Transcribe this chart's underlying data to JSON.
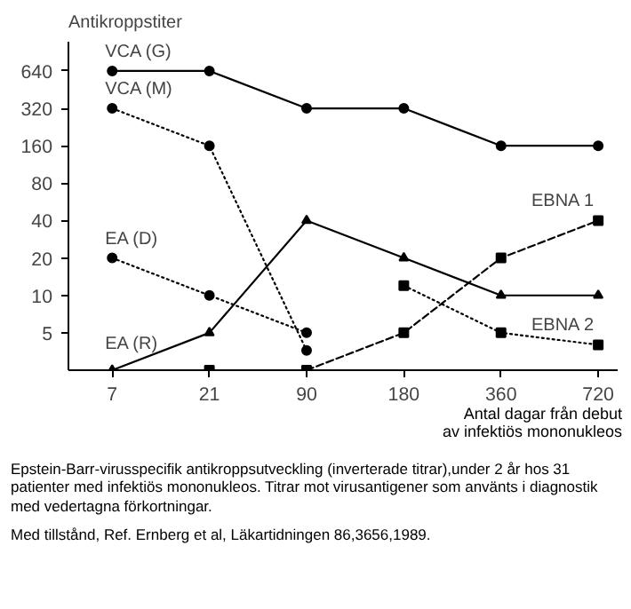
{
  "chart_data": {
    "type": "line",
    "ylabel": "Antikroppstiter",
    "xlabel": "Antal dagar från debut\nav infektiös mononukleos",
    "categories": [
      "7",
      "21",
      "90",
      "180",
      "360",
      "720"
    ],
    "log": "y",
    "ylim": [
      2.5,
      1100
    ],
    "yticks": [
      5,
      10,
      20,
      40,
      80,
      160,
      320,
      640
    ],
    "grid": false,
    "series": [
      {
        "name": "VCA (G)",
        "color": "#000000",
        "marker": "circle",
        "line_style": "solid",
        "values": [
          640,
          640,
          320,
          320,
          160,
          160
        ]
      },
      {
        "name": "VCA (M)",
        "color": "#000000",
        "marker": "circle",
        "line_style": "dotted",
        "values": [
          320,
          160,
          3.6,
          null,
          null,
          null
        ]
      },
      {
        "name": "EA (D)",
        "color": "#000000",
        "marker": "circle",
        "line_style": "dotted",
        "values": [
          20,
          10,
          5,
          null,
          null,
          null
        ]
      },
      {
        "name": "EA (R)",
        "color": "#000000",
        "marker": "triangle",
        "line_style": "solid",
        "values": [
          2.5,
          5,
          40,
          20,
          10,
          10
        ]
      },
      {
        "name": "EBNA 1",
        "color": "#000000",
        "marker": "square",
        "line_style": "dashed",
        "values": [
          null,
          null,
          2.5,
          5,
          20,
          40
        ]
      },
      {
        "name": "EBNA 2",
        "color": "#000000",
        "marker": "square",
        "line_style": "dotted",
        "values": [
          null,
          2.5,
          null,
          12,
          5,
          4
        ]
      }
    ],
    "annotations": [
      "Epstein-Barr-virusspecifik antikroppsutveckling (inverterade titrar),under 2 år hos 31 patienter med infektiös mononukleos. Titrar mot virusantigener som använts i diagnostik med vedertagna förkortningar.",
      "Med tillstånd, Ref. Ernberg et al, Läkartidningen 86,3656,1989."
    ]
  }
}
